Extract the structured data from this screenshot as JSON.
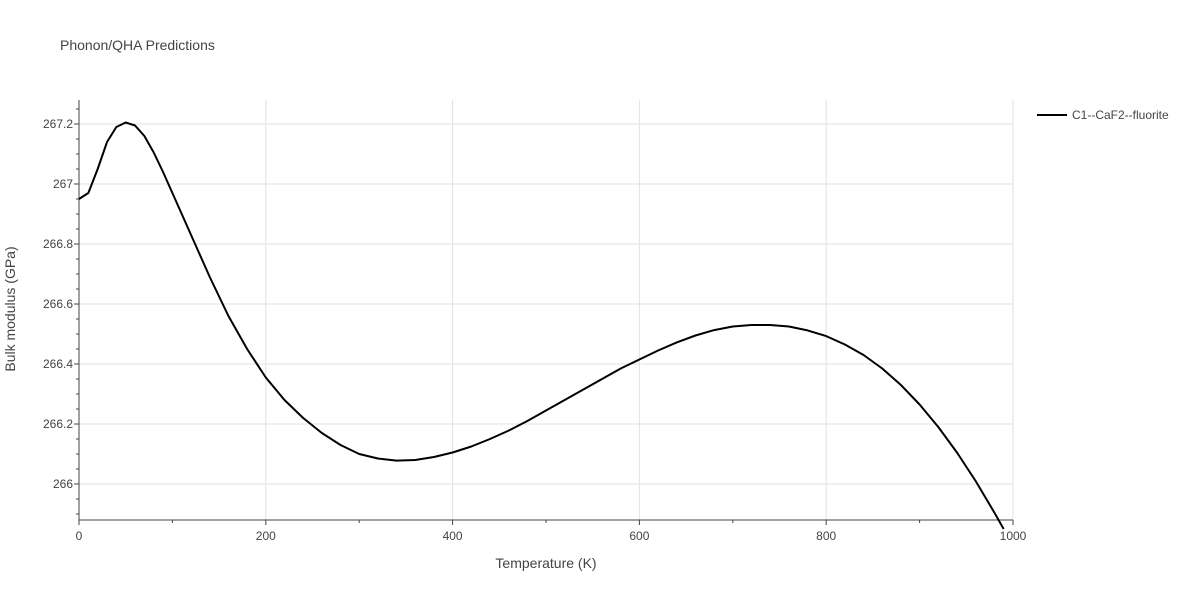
{
  "chart_data": {
    "type": "line",
    "title": "Phonon/QHA Predictions",
    "xlabel": "Temperature (K)",
    "ylabel": "Bulk modulus (GPa)",
    "xlim": [
      0,
      1000
    ],
    "ylim": [
      265.88,
      267.28
    ],
    "x_ticks": [
      0,
      200,
      400,
      600,
      800,
      1000
    ],
    "x_tick_labels": [
      "0",
      "200",
      "400",
      "600",
      "800",
      "1000"
    ],
    "y_ticks": [
      266,
      266.2,
      266.4,
      266.6,
      266.8,
      267,
      267.2
    ],
    "y_tick_labels": [
      "266",
      "266.2",
      "266.4",
      "266.6",
      "266.8",
      "267",
      "267.2"
    ],
    "grid": true,
    "legend_position": "top-right",
    "series": [
      {
        "name": "C1--CaF2--fluorite",
        "color": "#000000",
        "x": [
          0,
          10,
          20,
          30,
          40,
          50,
          60,
          70,
          80,
          90,
          100,
          120,
          140,
          160,
          180,
          200,
          220,
          240,
          260,
          280,
          300,
          320,
          340,
          360,
          380,
          400,
          420,
          440,
          460,
          480,
          500,
          520,
          540,
          560,
          580,
          600,
          620,
          640,
          660,
          680,
          700,
          720,
          740,
          760,
          780,
          800,
          820,
          840,
          860,
          880,
          900,
          920,
          940,
          960,
          980,
          990
        ],
        "y": [
          266.95,
          266.97,
          267.05,
          267.14,
          267.19,
          267.205,
          267.195,
          267.16,
          267.105,
          267.04,
          266.97,
          266.83,
          266.69,
          266.56,
          266.45,
          266.355,
          266.28,
          266.22,
          266.17,
          266.13,
          266.1,
          266.085,
          266.078,
          266.08,
          266.09,
          266.105,
          266.125,
          266.15,
          266.178,
          266.21,
          266.245,
          266.28,
          266.315,
          266.35,
          266.385,
          266.415,
          266.445,
          266.472,
          266.495,
          266.513,
          266.525,
          266.53,
          266.53,
          266.525,
          266.512,
          266.493,
          266.465,
          266.43,
          266.385,
          266.33,
          266.265,
          266.19,
          266.105,
          266.01,
          265.905,
          265.85
        ]
      }
    ]
  }
}
